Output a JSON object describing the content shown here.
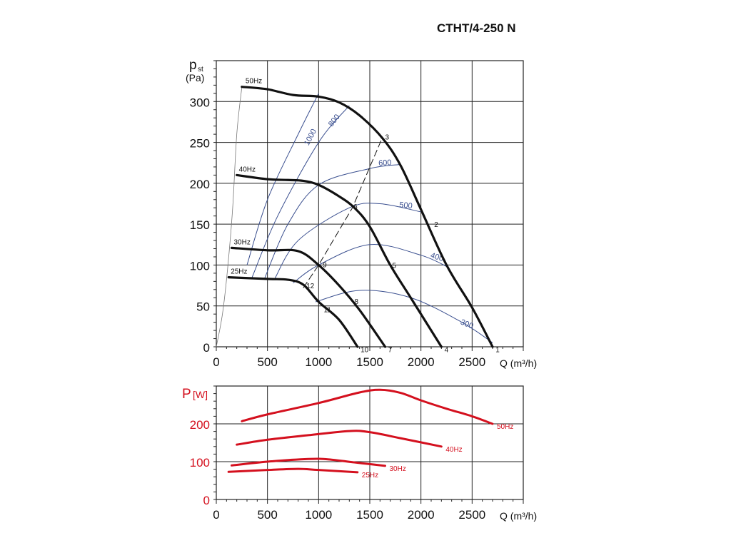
{
  "title": "CTHT/4-250 N",
  "colors": {
    "pressure": "#111111",
    "efficiency": "#3a4f8f",
    "power": "#d4101e",
    "grid": "#222222",
    "stall": "#777777"
  },
  "chart_data": [
    {
      "type": "line",
      "name": "pressure",
      "ylabel_main": "p",
      "ylabel_sub": "st",
      "yunit": "(Pa)",
      "xlabel": "Q (m³/h)",
      "xlim": [
        0,
        3000
      ],
      "ylim": [
        0,
        350
      ],
      "xticks": [
        0,
        500,
        1000,
        1500,
        2000,
        2500
      ],
      "yticks": [
        0,
        50,
        100,
        150,
        200,
        250,
        300
      ],
      "grid": true,
      "series": [
        {
          "name": "50Hz",
          "points": [
            [
              250,
              318
            ],
            [
              500,
              315
            ],
            [
              750,
              308
            ],
            [
              1000,
              306
            ],
            [
              1200,
              299
            ],
            [
              1400,
              283
            ],
            [
              1625,
              255
            ],
            [
              1800,
              222
            ],
            [
              2000,
              168
            ],
            [
              2250,
              100
            ],
            [
              2500,
              48
            ],
            [
              2700,
              0
            ]
          ]
        },
        {
          "name": "40Hz",
          "points": [
            [
              200,
              210
            ],
            [
              500,
              205
            ],
            [
              700,
              204
            ],
            [
              850,
              203
            ],
            [
              1000,
              198
            ],
            [
              1200,
              184
            ],
            [
              1350,
              170
            ],
            [
              1500,
              147
            ],
            [
              1700,
              100
            ],
            [
              1900,
              60
            ],
            [
              2200,
              0
            ]
          ]
        },
        {
          "name": "30Hz",
          "points": [
            [
              150,
              121
            ],
            [
              500,
              118
            ],
            [
              800,
              117
            ],
            [
              1000,
              100
            ],
            [
              1200,
              75
            ],
            [
              1400,
              45
            ],
            [
              1650,
              0
            ]
          ]
        },
        {
          "name": "25Hz",
          "points": [
            [
              120,
              85
            ],
            [
              500,
              83
            ],
            [
              700,
              82
            ],
            [
              850,
              76
            ],
            [
              1000,
              55
            ],
            [
              1200,
              33
            ],
            [
              1380,
              0
            ]
          ]
        }
      ],
      "stall_line": [
        [
          0,
          0
        ],
        [
          60,
          40
        ],
        [
          110,
          95
        ],
        [
          160,
          170
        ],
        [
          200,
          260
        ],
        [
          250,
          318
        ]
      ],
      "system_line": [
        [
          850,
          72
        ],
        [
          1000,
          100
        ],
        [
          1330,
          170
        ],
        [
          1620,
          255
        ]
      ],
      "efficiency_lines": [
        {
          "label": "1000",
          "points": [
            [
              300,
              100
            ],
            [
              500,
              180
            ],
            [
              800,
              260
            ],
            [
              1000,
              310
            ]
          ]
        },
        {
          "label": "800",
          "points": [
            [
              350,
              85
            ],
            [
              600,
              160
            ],
            [
              1000,
              250
            ],
            [
              1300,
              295
            ]
          ]
        },
        {
          "label": "600",
          "points": [
            [
              470,
              83
            ],
            [
              700,
              150
            ],
            [
              1000,
              198
            ],
            [
              1500,
              218
            ],
            [
              1800,
              223
            ]
          ]
        },
        {
          "label": "500",
          "points": [
            [
              570,
              83
            ],
            [
              800,
              130
            ],
            [
              1300,
              170
            ],
            [
              1600,
              175
            ],
            [
              2000,
              165
            ]
          ]
        },
        {
          "label": "400",
          "points": [
            [
              750,
              78
            ],
            [
              1000,
              100
            ],
            [
              1500,
              125
            ],
            [
              2000,
              112
            ],
            [
              2270,
              97
            ]
          ]
        },
        {
          "label": "300",
          "points": [
            [
              970,
              55
            ],
            [
              1400,
              69
            ],
            [
              1900,
              60
            ],
            [
              2400,
              30
            ],
            [
              2700,
              5
            ]
          ]
        }
      ],
      "point_labels": [
        {
          "label": "1",
          "q": 2730,
          "p": -3
        },
        {
          "label": "2",
          "q": 2130,
          "p": 150
        },
        {
          "label": "3",
          "q": 1650,
          "p": 257
        },
        {
          "label": "4",
          "q": 2230,
          "p": -3
        },
        {
          "label": "5",
          "q": 1720,
          "p": 100
        },
        {
          "label": "6",
          "q": 1340,
          "p": 172
        },
        {
          "label": "7",
          "q": 1680,
          "p": -3
        },
        {
          "label": "8",
          "q": 1350,
          "p": 56
        },
        {
          "label": "9",
          "q": 1040,
          "p": 101
        },
        {
          "label": "10",
          "q": 1410,
          "p": -3
        },
        {
          "label": "11",
          "q": 1050,
          "p": 46
        },
        {
          "label": "12",
          "q": 880,
          "p": 75
        }
      ]
    },
    {
      "type": "line",
      "name": "power",
      "ylabel_main": "P",
      "yunit": "[W]",
      "xlabel": "Q (m³/h)",
      "xlim": [
        0,
        3000
      ],
      "ylim": [
        0,
        300
      ],
      "xticks": [
        0,
        500,
        1000,
        1500,
        2000,
        2500
      ],
      "yticks": [
        0,
        100,
        200
      ],
      "grid": true,
      "series": [
        {
          "name": "50Hz",
          "points": [
            [
              250,
              207
            ],
            [
              500,
              225
            ],
            [
              1000,
              255
            ],
            [
              1400,
              283
            ],
            [
              1600,
              290
            ],
            [
              1800,
              282
            ],
            [
              2000,
              262
            ],
            [
              2250,
              240
            ],
            [
              2500,
              220
            ],
            [
              2700,
              200
            ]
          ]
        },
        {
          "name": "40Hz",
          "points": [
            [
              200,
              145
            ],
            [
              500,
              158
            ],
            [
              900,
              170
            ],
            [
              1300,
              181
            ],
            [
              1500,
              178
            ],
            [
              1800,
              162
            ],
            [
              2200,
              140
            ]
          ]
        },
        {
          "name": "30Hz",
          "points": [
            [
              150,
              90
            ],
            [
              500,
              100
            ],
            [
              900,
              107
            ],
            [
              1100,
              106
            ],
            [
              1350,
              98
            ],
            [
              1650,
              89
            ]
          ]
        },
        {
          "name": "25Hz",
          "points": [
            [
              120,
              73
            ],
            [
              500,
              78
            ],
            [
              800,
              81
            ],
            [
              1000,
              78
            ],
            [
              1380,
              72
            ]
          ]
        }
      ]
    }
  ]
}
